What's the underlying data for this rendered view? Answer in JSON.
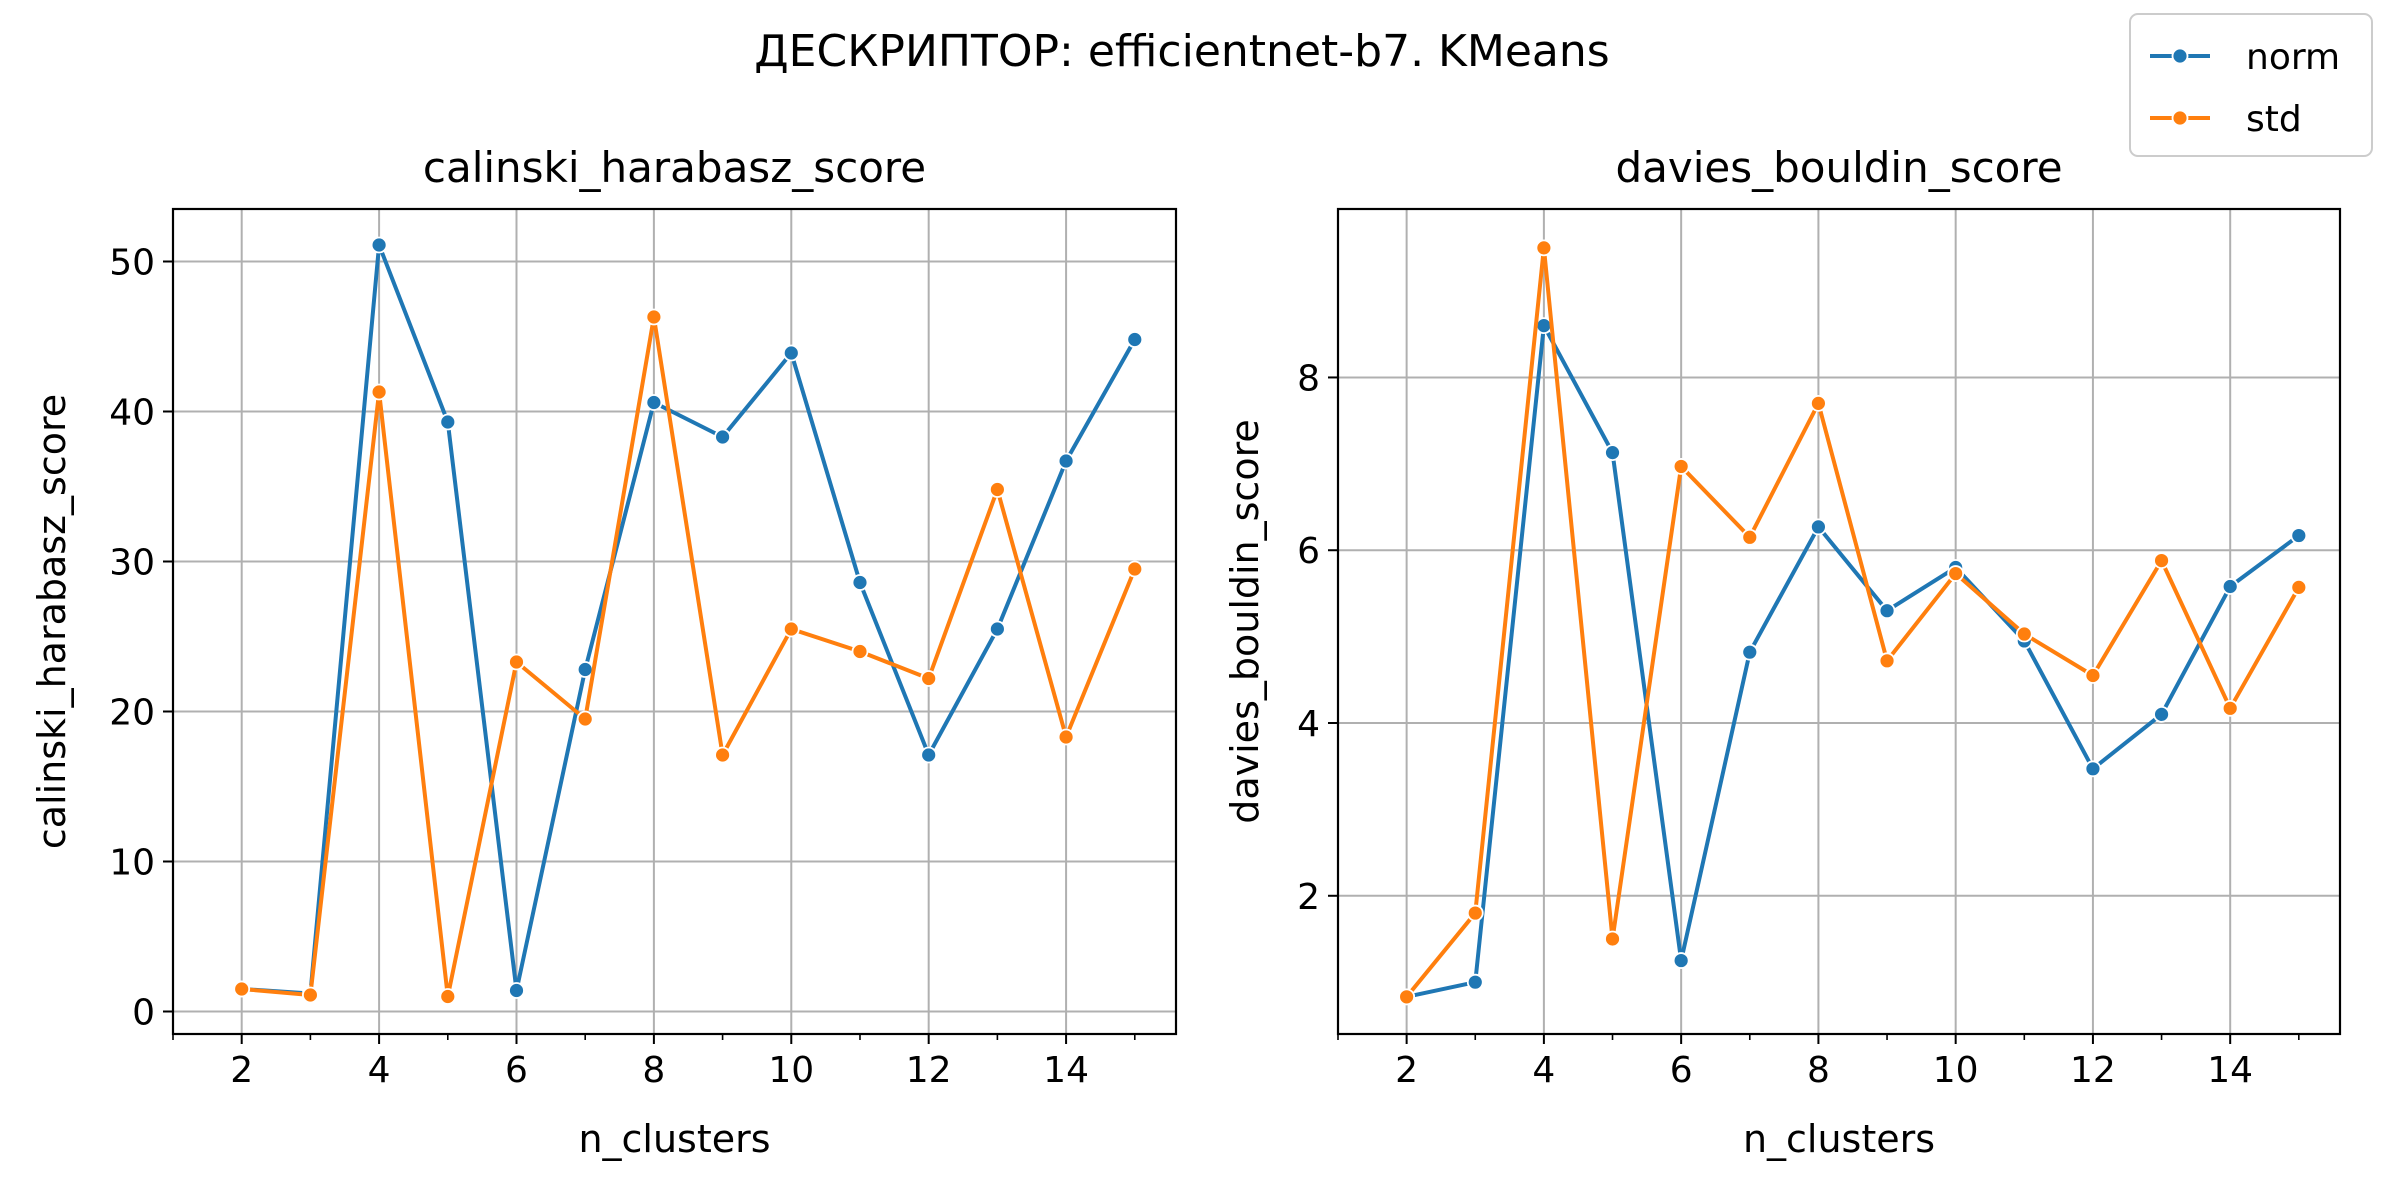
{
  "figure": {
    "suptitle": "ДЕСКРИПТОР: efficientnet-b7. KMeans",
    "legend": {
      "placement": "top-right",
      "entries": [
        {
          "name": "norm",
          "color": "#1f77b4"
        },
        {
          "name": "std",
          "color": "#ff7f0e"
        }
      ]
    }
  },
  "chart_data": [
    {
      "type": "line",
      "title": "calinski_harabasz_score",
      "xlabel": "n_clusters",
      "ylabel": "calinski_harabasz_score",
      "x": [
        2,
        3,
        4,
        5,
        6,
        7,
        8,
        9,
        10,
        11,
        12,
        13,
        14,
        15
      ],
      "xlim": [
        1,
        15.6
      ],
      "ylim": [
        -1.5,
        53.5
      ],
      "xticks": [
        2,
        4,
        6,
        8,
        10,
        12,
        14
      ],
      "xticklabels": [
        "2",
        "4",
        "6",
        "8",
        "10",
        "12",
        "14"
      ],
      "yticks": [
        0,
        10,
        20,
        30,
        40,
        50
      ],
      "yticklabels": [
        "0",
        "10",
        "20",
        "30",
        "40",
        "50"
      ],
      "grid": true,
      "series": [
        {
          "name": "norm",
          "color": "#1f77b4",
          "values": [
            1.5,
            1.2,
            51.1,
            39.3,
            1.4,
            22.8,
            40.6,
            38.3,
            43.9,
            28.6,
            17.1,
            25.5,
            36.7,
            44.8
          ]
        },
        {
          "name": "std",
          "color": "#ff7f0e",
          "values": [
            1.5,
            1.1,
            41.3,
            1.0,
            23.3,
            19.5,
            46.3,
            17.1,
            25.5,
            24.0,
            22.2,
            34.8,
            18.3,
            29.5
          ]
        }
      ]
    },
    {
      "type": "line",
      "title": "davies_bouldin_score",
      "xlabel": "n_clusters",
      "ylabel": "davies_bouldin_score",
      "x": [
        2,
        3,
        4,
        5,
        6,
        7,
        8,
        9,
        10,
        11,
        12,
        13,
        14,
        15
      ],
      "xlim": [
        1,
        15.6
      ],
      "ylim": [
        0.4,
        9.95
      ],
      "xticks": [
        2,
        4,
        6,
        8,
        10,
        12,
        14
      ],
      "xticklabels": [
        "2",
        "4",
        "6",
        "8",
        "10",
        "12",
        "14"
      ],
      "yticks": [
        2,
        4,
        6,
        8
      ],
      "yticklabels": [
        "2",
        "4",
        "6",
        "8"
      ],
      "grid": true,
      "series": [
        {
          "name": "norm",
          "color": "#1f77b4",
          "values": [
            0.83,
            1.0,
            8.6,
            7.13,
            1.25,
            4.82,
            6.27,
            5.3,
            5.8,
            4.95,
            3.47,
            4.1,
            5.58,
            6.17
          ]
        },
        {
          "name": "std",
          "color": "#ff7f0e",
          "values": [
            0.83,
            1.8,
            9.5,
            1.5,
            6.97,
            6.15,
            7.7,
            4.72,
            5.73,
            5.03,
            4.55,
            5.88,
            4.17,
            5.57
          ]
        }
      ]
    }
  ]
}
